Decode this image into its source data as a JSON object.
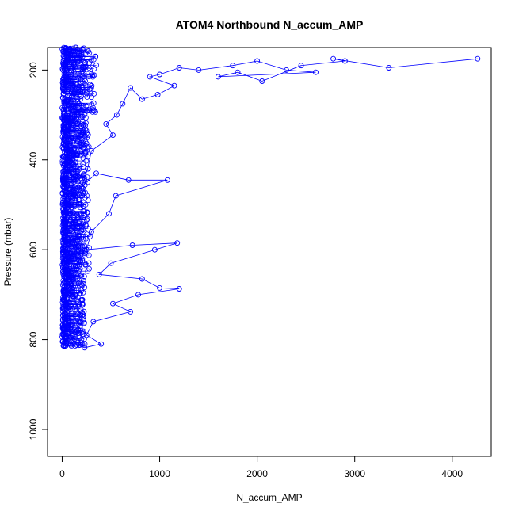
{
  "chart_data": {
    "type": "scatter",
    "title": "ATOM4 Northbound N_accum_AMP",
    "xlabel": "N_accum_AMP",
    "ylabel": "Pressure (mbar)",
    "x_ticks": [
      0,
      1000,
      2000,
      3000,
      4000
    ],
    "y_ticks": [
      200,
      400,
      600,
      800,
      1000
    ],
    "xlim": [
      -150,
      4400
    ],
    "ylim": [
      1060,
      150
    ],
    "y_reversed": true,
    "grid": false,
    "marker": "open-circle",
    "connected_by_lines": true,
    "series_color": "#0000ff",
    "series": [
      {
        "points": [
          [
            4260,
            175
          ],
          [
            3350,
            195
          ],
          [
            2780,
            175
          ],
          [
            2900,
            180
          ],
          [
            2450,
            190
          ],
          [
            2050,
            225
          ],
          [
            1800,
            205
          ],
          [
            1600,
            215
          ],
          [
            2600,
            205
          ],
          [
            2300,
            200
          ],
          [
            2000,
            180
          ],
          [
            1750,
            190
          ],
          [
            1400,
            200
          ],
          [
            1200,
            195
          ],
          [
            1000,
            210
          ],
          [
            900,
            215
          ],
          [
            1150,
            235
          ],
          [
            980,
            255
          ],
          [
            820,
            265
          ],
          [
            700,
            240
          ],
          [
            620,
            275
          ],
          [
            560,
            300
          ],
          [
            450,
            320
          ],
          [
            520,
            345
          ],
          [
            300,
            380
          ],
          [
            260,
            420
          ],
          [
            200,
            460
          ],
          [
            350,
            430
          ],
          [
            680,
            445
          ],
          [
            1080,
            445
          ],
          [
            550,
            480
          ],
          [
            480,
            520
          ],
          [
            300,
            560
          ],
          [
            250,
            600
          ],
          [
            720,
            590
          ],
          [
            1180,
            585
          ],
          [
            950,
            600
          ],
          [
            500,
            630
          ],
          [
            380,
            655
          ],
          [
            820,
            665
          ],
          [
            1000,
            685
          ],
          [
            1200,
            687
          ],
          [
            780,
            700
          ],
          [
            520,
            720
          ],
          [
            700,
            738
          ],
          [
            320,
            760
          ],
          [
            250,
            790
          ],
          [
            400,
            810
          ],
          [
            230,
            818
          ],
          [
            150,
            812
          ],
          [
            90,
            795
          ],
          [
            60,
            760
          ],
          [
            50,
            720
          ],
          [
            40,
            650
          ],
          [
            30,
            560
          ],
          [
            45,
            470
          ],
          [
            60,
            380
          ],
          [
            80,
            300
          ],
          [
            100,
            250
          ],
          [
            120,
            190
          ],
          [
            140,
            150
          ]
        ]
      }
    ]
  }
}
